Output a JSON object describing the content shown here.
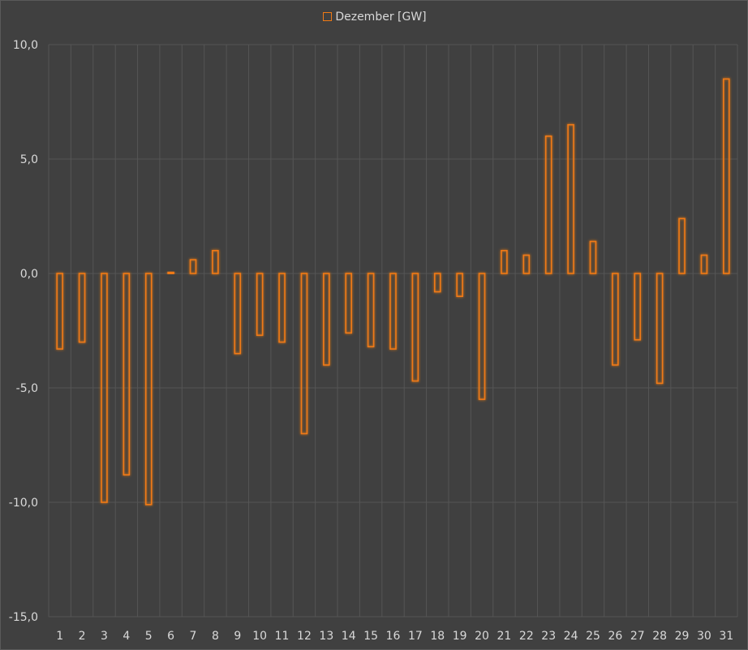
{
  "chart_data": {
    "type": "bar",
    "categories": [
      "1",
      "2",
      "3",
      "4",
      "5",
      "6",
      "7",
      "8",
      "9",
      "10",
      "11",
      "12",
      "13",
      "14",
      "15",
      "16",
      "17",
      "18",
      "19",
      "20",
      "21",
      "22",
      "23",
      "24",
      "25",
      "26",
      "27",
      "28",
      "29",
      "30",
      "31"
    ],
    "series": [
      {
        "name": "Dezember [GW]",
        "values": [
          -3.3,
          -3.0,
          -10.0,
          -8.8,
          -10.1,
          0.05,
          0.6,
          1.0,
          -3.5,
          -2.7,
          -3.0,
          -7.0,
          -4.0,
          -2.6,
          -3.2,
          -3.3,
          -4.7,
          -0.8,
          -1.0,
          -5.5,
          1.0,
          0.8,
          6.0,
          6.5,
          1.4,
          -4.0,
          -2.9,
          -4.8,
          2.4,
          0.8,
          8.5
        ]
      }
    ],
    "yticks": [
      "10,0",
      "5,0",
      "0,0",
      "-5,0",
      "-10,0",
      "-15,0"
    ],
    "ylim": [
      -15,
      10
    ],
    "grid": true,
    "legend_position": "top-center",
    "colors": {
      "bar_stroke": "#f07a14",
      "background": "#404040",
      "grid": "#555555",
      "text": "#d9d9d9"
    }
  }
}
